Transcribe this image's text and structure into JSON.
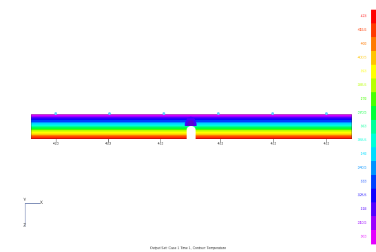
{
  "footer": {
    "title": "Output Set: Case 1 Time 1, Contour: Temperature"
  },
  "legend": {
    "labels": [
      "423",
      "415.5",
      "408",
      "400.5",
      "393",
      "385.5",
      "378",
      "370.5",
      "363",
      "355.5",
      "348",
      "340.5",
      "333",
      "325.5",
      "318",
      "310.5",
      "303"
    ],
    "colors": [
      "#ff0000",
      "#ff3a00",
      "#ff7a00",
      "#ffc400",
      "#ffff00",
      "#b7ff00",
      "#48ff00",
      "#00ff39",
      "#00ff99",
      "#00ffd9",
      "#00ddff",
      "#0093ff",
      "#0040ff",
      "#1000ff",
      "#5400ff",
      "#9b00ff",
      "#e400ff"
    ]
  },
  "beam": {
    "bands": [
      "#e400ff",
      "#9b00ff",
      "#5400ff",
      "#1000ff",
      "#0040ff",
      "#0093ff",
      "#00ddff",
      "#00ffd9",
      "#00ff99",
      "#00ff39",
      "#48ff00",
      "#b7ff00",
      "#ffff00",
      "#ffc400",
      "#ff7a00",
      "#ff3a00",
      "#ff0000"
    ],
    "node_labels": [
      "423",
      "423",
      "423",
      "423",
      "423",
      "423"
    ]
  },
  "triad": {
    "y": "Y",
    "x": "X",
    "z": "Z"
  }
}
